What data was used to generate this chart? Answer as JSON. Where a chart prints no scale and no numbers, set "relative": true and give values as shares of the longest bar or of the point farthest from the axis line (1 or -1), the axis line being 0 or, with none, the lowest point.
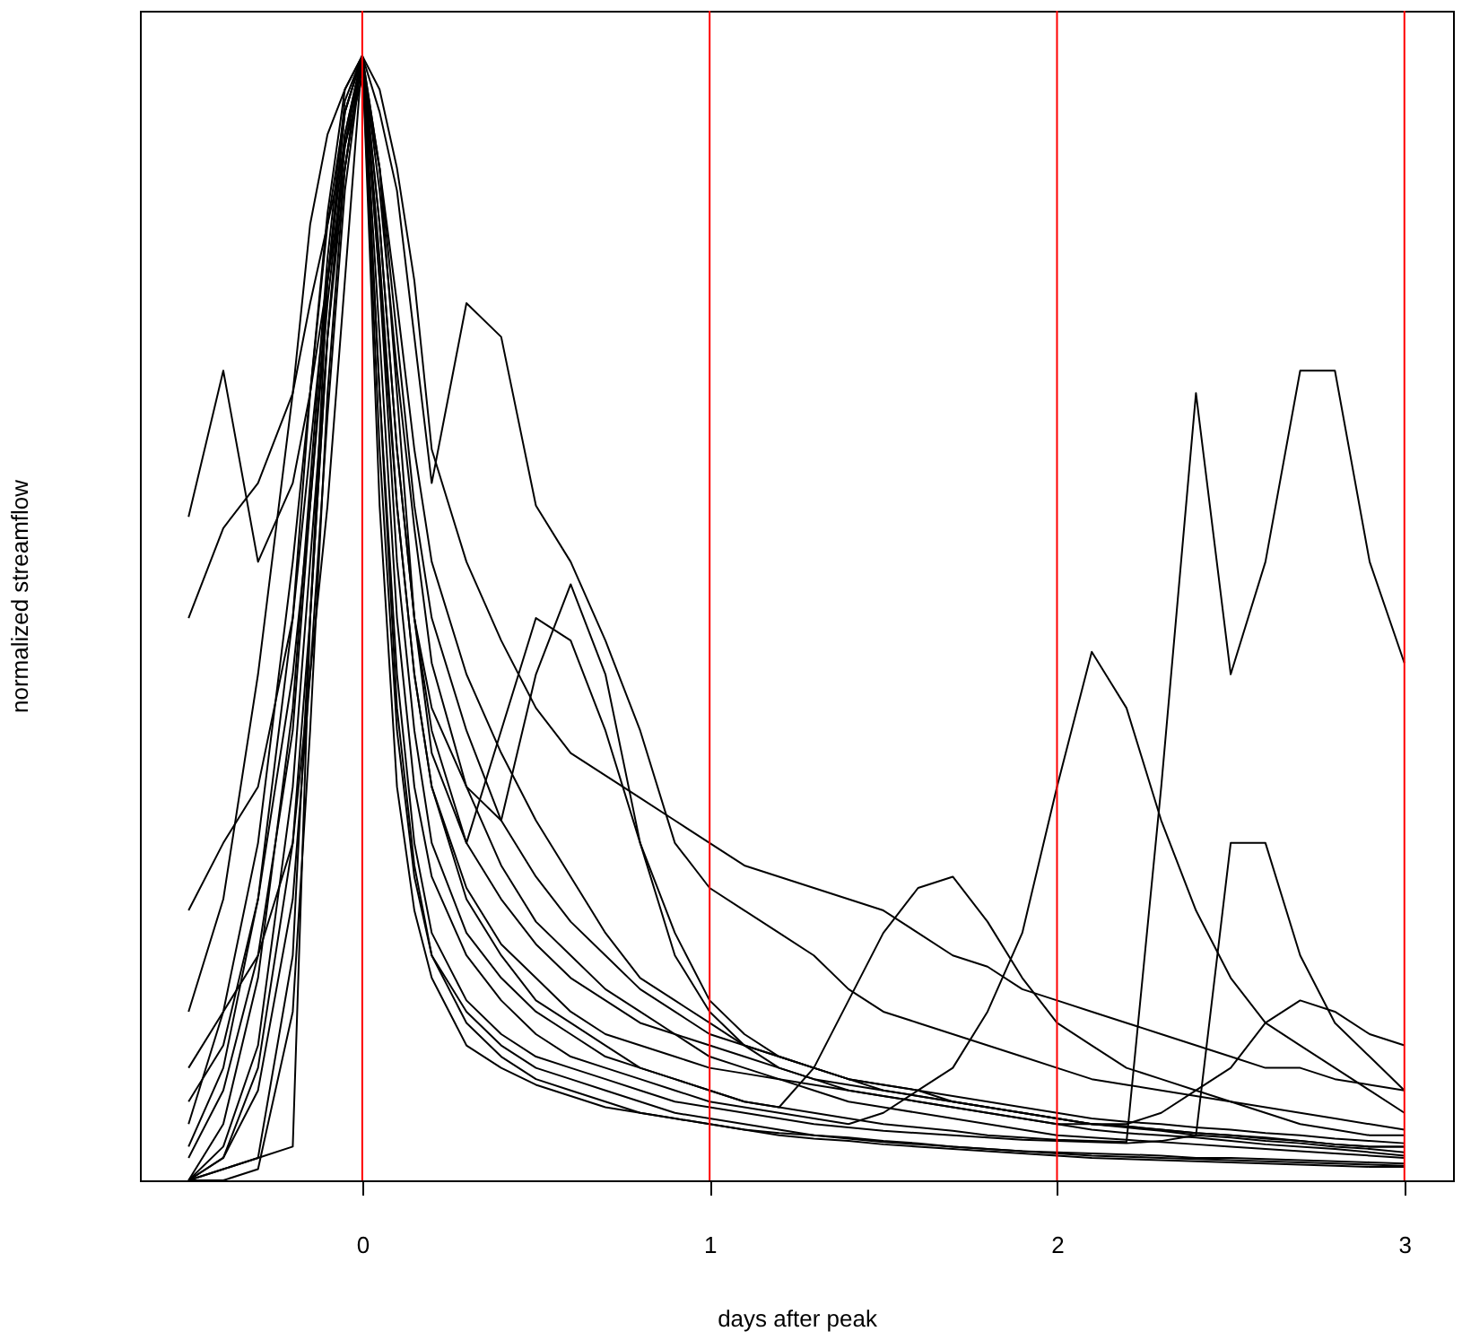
{
  "chart_data": {
    "type": "line",
    "relative": true,
    "xlabel": "days after peak",
    "ylabel": "normalized streamflow",
    "xlim": [
      -0.64,
      3.14
    ],
    "xticks": [
      0,
      1,
      2,
      3
    ],
    "grid": false,
    "legend": false,
    "marker": "none",
    "line_style": "solid",
    "x": [
      -0.5,
      -0.4,
      -0.3,
      -0.2,
      -0.15,
      -0.1,
      -0.05,
      0,
      0.05,
      0.1,
      0.15,
      0.2,
      0.3,
      0.4,
      0.5,
      0.6,
      0.7,
      0.8,
      0.9,
      1.0,
      1.1,
      1.2,
      1.3,
      1.4,
      1.5,
      1.6,
      1.7,
      1.8,
      1.9,
      2.0,
      2.1,
      2.2,
      2.3,
      2.4,
      2.5,
      2.6,
      2.7,
      2.8,
      2.9,
      3.0
    ],
    "ref_lines": [
      {
        "axis": "x",
        "value": 0,
        "color": "#ff0000"
      },
      {
        "axis": "x",
        "value": 1,
        "color": "#ff0000"
      },
      {
        "axis": "x",
        "value": 2,
        "color": "#ff0000"
      },
      {
        "axis": "x",
        "value": 3,
        "color": "#ff0000"
      }
    ],
    "series": [
      {
        "color": "#000000",
        "values": [
          0.59,
          0.72,
          0.55,
          0.62,
          0.7,
          0.8,
          0.9,
          1.0,
          0.85,
          0.65,
          0.5,
          0.4,
          0.3,
          0.25,
          0.21,
          0.18,
          0.16,
          0.14,
          0.13,
          0.12,
          0.11,
          0.1,
          0.09,
          0.085,
          0.08,
          0.075,
          0.07,
          0.065,
          0.06,
          0.055,
          0.05,
          0.048,
          0.045,
          0.042,
          0.04,
          0.038,
          0.035,
          0.032,
          0.03,
          0.03
        ]
      },
      {
        "color": "#000000",
        "values": [
          0.5,
          0.58,
          0.62,
          0.7,
          0.78,
          0.85,
          0.92,
          0.98,
          0.9,
          0.75,
          0.6,
          0.5,
          0.4,
          0.32,
          0.27,
          0.23,
          0.2,
          0.17,
          0.15,
          0.13,
          0.12,
          0.11,
          0.1,
          0.09,
          0.085,
          0.08,
          0.075,
          0.07,
          0.065,
          0.06,
          0.055,
          0.052,
          0.05,
          0.047,
          0.045,
          0.042,
          0.04,
          0.037,
          0.035,
          0.033
        ]
      },
      {
        "color": "#000000",
        "values": [
          0.15,
          0.25,
          0.45,
          0.7,
          0.85,
          0.93,
          0.97,
          1.0,
          0.95,
          0.88,
          0.75,
          0.62,
          0.78,
          0.75,
          0.6,
          0.55,
          0.48,
          0.4,
          0.3,
          0.26,
          0.24,
          0.22,
          0.2,
          0.17,
          0.15,
          0.14,
          0.13,
          0.12,
          0.11,
          0.1,
          0.09,
          0.085,
          0.08,
          0.075,
          0.07,
          0.065,
          0.06,
          0.055,
          0.05,
          0.045
        ]
      },
      {
        "color": "#000000",
        "values": [
          0.05,
          0.15,
          0.3,
          0.55,
          0.7,
          0.85,
          0.95,
          1.0,
          0.85,
          0.65,
          0.5,
          0.42,
          0.35,
          0.32,
          0.45,
          0.53,
          0.45,
          0.3,
          0.2,
          0.15,
          0.12,
          0.1,
          0.09,
          0.08,
          0.075,
          0.07,
          0.065,
          0.06,
          0.055,
          0.05,
          0.045,
          0.042,
          0.04,
          0.038,
          0.035,
          0.032,
          0.03,
          0.028,
          0.025,
          0.022
        ]
      },
      {
        "color": "#000000",
        "values": [
          0.0,
          0.02,
          0.1,
          0.3,
          0.5,
          0.75,
          0.92,
          1.0,
          0.9,
          0.7,
          0.5,
          0.38,
          0.3,
          0.4,
          0.5,
          0.48,
          0.4,
          0.3,
          0.22,
          0.16,
          0.13,
          0.11,
          0.1,
          0.09,
          0.085,
          0.08,
          0.07,
          0.065,
          0.06,
          0.055,
          0.05,
          0.048,
          0.045,
          0.042,
          0.04,
          0.037,
          0.035,
          0.032,
          0.03,
          0.03
        ]
      },
      {
        "color": "#000000",
        "values": [
          0.07,
          0.12,
          0.25,
          0.45,
          0.6,
          0.8,
          0.95,
          1.0,
          0.8,
          0.55,
          0.4,
          0.3,
          0.22,
          0.18,
          0.15,
          0.13,
          0.11,
          0.1,
          0.09,
          0.08,
          0.07,
          0.065,
          0.1,
          0.16,
          0.22,
          0.26,
          0.27,
          0.23,
          0.18,
          0.14,
          0.12,
          0.1,
          0.09,
          0.08,
          0.07,
          0.06,
          0.05,
          0.045,
          0.04,
          0.04
        ]
      },
      {
        "color": "#000000",
        "values": [
          0.0,
          0.01,
          0.02,
          0.2,
          0.5,
          0.75,
          0.93,
          1.0,
          0.75,
          0.5,
          0.35,
          0.27,
          0.2,
          0.16,
          0.13,
          0.11,
          0.1,
          0.09,
          0.08,
          0.07,
          0.065,
          0.06,
          0.055,
          0.05,
          0.06,
          0.08,
          0.1,
          0.15,
          0.22,
          0.35,
          0.47,
          0.42,
          0.32,
          0.24,
          0.18,
          0.14,
          0.12,
          0.1,
          0.08,
          0.06
        ]
      },
      {
        "color": "#000000",
        "values": [
          0.0,
          0.0,
          0.01,
          0.15,
          0.4,
          0.7,
          0.9,
          1.0,
          0.8,
          0.6,
          0.45,
          0.35,
          0.25,
          0.2,
          0.16,
          0.14,
          0.12,
          0.1,
          0.09,
          0.08,
          0.07,
          0.065,
          0.06,
          0.055,
          0.05,
          0.047,
          0.044,
          0.04,
          0.038,
          0.036,
          0.035,
          0.034,
          0.35,
          0.7,
          0.45,
          0.55,
          0.72,
          0.72,
          0.55,
          0.46
        ]
      },
      {
        "color": "#000000",
        "values": [
          0.02,
          0.08,
          0.2,
          0.4,
          0.6,
          0.78,
          0.92,
          1.0,
          0.7,
          0.45,
          0.3,
          0.22,
          0.16,
          0.13,
          0.11,
          0.1,
          0.09,
          0.08,
          0.07,
          0.065,
          0.06,
          0.055,
          0.05,
          0.047,
          0.044,
          0.042,
          0.04,
          0.038,
          0.036,
          0.035,
          0.034,
          0.033,
          0.035,
          0.04,
          0.3,
          0.3,
          0.2,
          0.14,
          0.11,
          0.08
        ]
      },
      {
        "color": "#000000",
        "values": [
          0.0,
          0.01,
          0.02,
          0.03,
          0.5,
          0.8,
          0.95,
          1.0,
          0.7,
          0.42,
          0.28,
          0.2,
          0.14,
          0.11,
          0.09,
          0.08,
          0.07,
          0.06,
          0.055,
          0.05,
          0.045,
          0.04,
          0.037,
          0.035,
          0.032,
          0.03,
          0.028,
          0.026,
          0.024,
          0.022,
          0.02,
          0.019,
          0.018,
          0.017,
          0.016,
          0.015,
          0.014,
          0.013,
          0.012,
          0.012
        ]
      },
      {
        "color": "#000000",
        "values": [
          0.1,
          0.15,
          0.2,
          0.3,
          0.45,
          0.6,
          0.8,
          1.0,
          0.97,
          0.9,
          0.8,
          0.65,
          0.55,
          0.48,
          0.42,
          0.38,
          0.36,
          0.34,
          0.32,
          0.3,
          0.28,
          0.27,
          0.26,
          0.25,
          0.24,
          0.22,
          0.2,
          0.19,
          0.17,
          0.16,
          0.15,
          0.14,
          0.13,
          0.12,
          0.11,
          0.1,
          0.1,
          0.09,
          0.085,
          0.08
        ]
      },
      {
        "color": "#000000",
        "values": [
          0.0,
          0.03,
          0.12,
          0.35,
          0.55,
          0.75,
          0.9,
          1.0,
          0.6,
          0.35,
          0.24,
          0.18,
          0.12,
          0.1,
          0.085,
          0.075,
          0.065,
          0.06,
          0.055,
          0.05,
          0.045,
          0.042,
          0.04,
          0.037,
          0.034,
          0.032,
          0.03,
          0.028,
          0.026,
          0.024,
          0.022,
          0.021,
          0.02,
          0.019,
          0.018,
          0.017,
          0.016,
          0.015,
          0.014,
          0.013
        ]
      },
      {
        "color": "#000000",
        "values": [
          0.0,
          0.05,
          0.18,
          0.42,
          0.62,
          0.82,
          0.96,
          1.0,
          0.88,
          0.72,
          0.58,
          0.46,
          0.35,
          0.28,
          0.23,
          0.2,
          0.17,
          0.15,
          0.13,
          0.11,
          0.1,
          0.09,
          0.08,
          0.07,
          0.065,
          0.06,
          0.055,
          0.05,
          0.045,
          0.04,
          0.038,
          0.036,
          0.034,
          0.032,
          0.03,
          0.028,
          0.026,
          0.024,
          0.022,
          0.02
        ]
      },
      {
        "color": "#000000",
        "values": [
          0.24,
          0.3,
          0.35,
          0.5,
          0.65,
          0.8,
          0.93,
          1.0,
          0.9,
          0.78,
          0.65,
          0.55,
          0.45,
          0.38,
          0.32,
          0.27,
          0.22,
          0.18,
          0.16,
          0.14,
          0.12,
          0.11,
          0.1,
          0.09,
          0.08,
          0.075,
          0.07,
          0.065,
          0.06,
          0.055,
          0.05,
          0.047,
          0.044,
          0.04,
          0.038,
          0.035,
          0.033,
          0.03,
          0.028,
          0.025
        ]
      },
      {
        "color": "#000000",
        "values": [
          0.03,
          0.1,
          0.25,
          0.5,
          0.7,
          0.86,
          0.97,
          1.0,
          0.82,
          0.6,
          0.45,
          0.35,
          0.26,
          0.21,
          0.18,
          0.15,
          0.13,
          0.12,
          0.11,
          0.1,
          0.095,
          0.09,
          0.085,
          0.08,
          0.075,
          0.07,
          0.065,
          0.06,
          0.055,
          0.05,
          0.05,
          0.05,
          0.06,
          0.08,
          0.1,
          0.14,
          0.16,
          0.15,
          0.13,
          0.12
        ]
      },
      {
        "color": "#000000",
        "values": [
          0.0,
          0.02,
          0.08,
          0.25,
          0.45,
          0.68,
          0.88,
          1.0,
          0.65,
          0.4,
          0.27,
          0.2,
          0.15,
          0.12,
          0.1,
          0.09,
          0.08,
          0.07,
          0.06,
          0.055,
          0.05,
          0.045,
          0.04,
          0.038,
          0.035,
          0.033,
          0.03,
          0.028,
          0.026,
          0.025,
          0.024,
          0.023,
          0.022,
          0.02,
          0.02,
          0.019,
          0.018,
          0.017,
          0.016,
          0.015
        ]
      }
    ]
  }
}
